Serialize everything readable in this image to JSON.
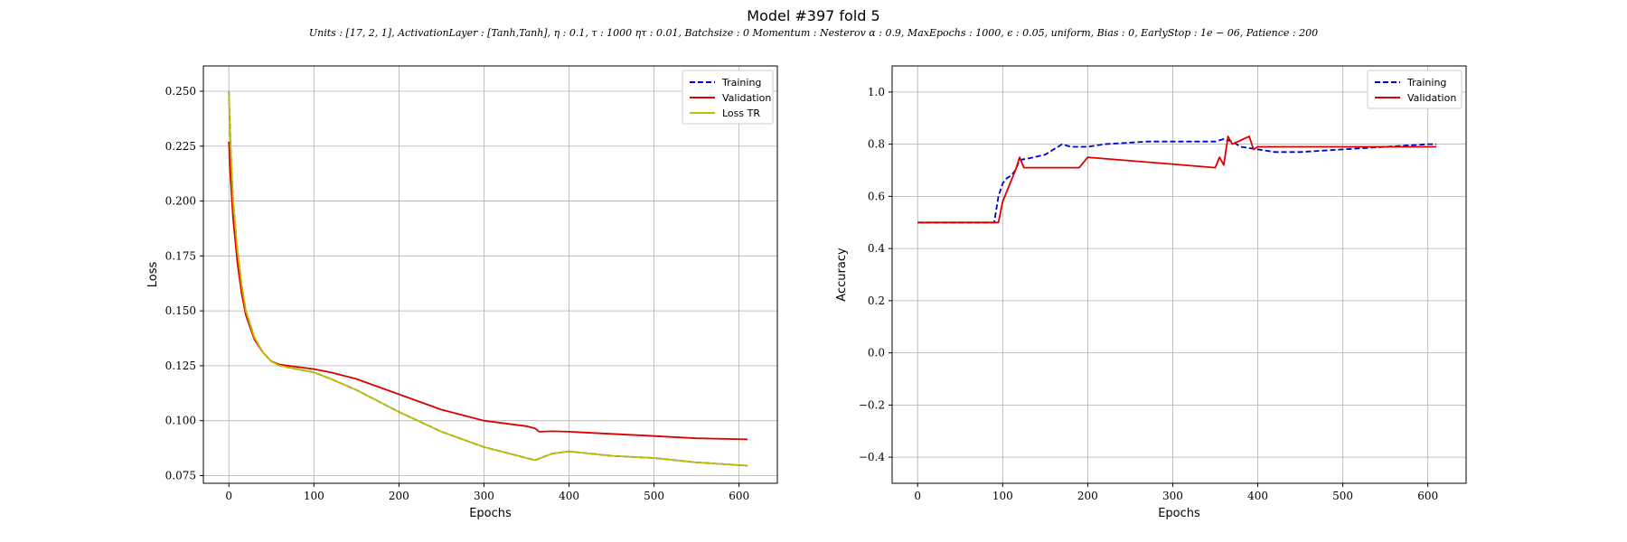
{
  "figure": {
    "title": "Model #397 fold 5",
    "subtitle": "Units : [17, 2, 1], ActivationLayer : [Tanh,Tanh], η : 0.1, τ : 1000 ητ : 0.01, Batchsize : 0 Momentum : Nesterov α : 0.9, MaxEpochs : 1000, ϵ : 0.05, uniform, Bias : 0, EarlyStop : 1e − 06, Patience : 200"
  },
  "chart_data": [
    {
      "type": "line",
      "xlabel": "Epochs",
      "ylabel": "Loss",
      "xlim": [
        -30,
        645
      ],
      "ylim": [
        0.0715,
        0.2615
      ],
      "xticks": [
        0,
        100,
        200,
        300,
        400,
        500,
        600
      ],
      "yticks": [
        0.075,
        0.1,
        0.125,
        0.15,
        0.175,
        0.2,
        0.225,
        0.25
      ],
      "ytick_labels": [
        "0.075",
        "0.100",
        "0.125",
        "0.150",
        "0.175",
        "0.200",
        "0.225",
        "0.250"
      ],
      "grid": true,
      "legend": "top-right",
      "series": [
        {
          "name": "Training",
          "style": "dashed",
          "color": "#0000cc",
          "x": [
            0,
            2,
            5,
            10,
            15,
            20,
            30,
            40,
            50,
            60,
            80,
            100,
            120,
            150,
            200,
            250,
            300,
            350,
            360,
            380,
            400,
            450,
            500,
            550,
            610
          ],
          "y": [
            0.25,
            0.225,
            0.2,
            0.178,
            0.162,
            0.15,
            0.138,
            0.131,
            0.127,
            0.125,
            0.1235,
            0.122,
            0.119,
            0.114,
            0.104,
            0.095,
            0.088,
            0.083,
            0.082,
            0.085,
            0.086,
            0.084,
            0.083,
            0.081,
            0.0795
          ]
        },
        {
          "name": "Validation",
          "style": "solid",
          "color": "#dd0000",
          "x": [
            0,
            2,
            5,
            10,
            15,
            20,
            30,
            40,
            50,
            60,
            80,
            100,
            120,
            150,
            200,
            250,
            300,
            350,
            360,
            365,
            380,
            400,
            450,
            500,
            550,
            610
          ],
          "y": [
            0.227,
            0.21,
            0.192,
            0.172,
            0.158,
            0.148,
            0.137,
            0.131,
            0.127,
            0.1255,
            0.1245,
            0.1235,
            0.122,
            0.119,
            0.112,
            0.105,
            0.1,
            0.0975,
            0.0965,
            0.095,
            0.0952,
            0.095,
            0.094,
            0.093,
            0.092,
            0.0915
          ]
        },
        {
          "name": "Loss TR",
          "style": "solid",
          "color": "#bfbf00",
          "x": [
            0,
            2,
            5,
            10,
            15,
            20,
            30,
            40,
            50,
            60,
            80,
            100,
            120,
            150,
            200,
            250,
            300,
            350,
            360,
            380,
            400,
            450,
            500,
            550,
            610
          ],
          "y": [
            0.25,
            0.225,
            0.2,
            0.178,
            0.162,
            0.15,
            0.138,
            0.131,
            0.127,
            0.125,
            0.1235,
            0.122,
            0.119,
            0.114,
            0.104,
            0.095,
            0.088,
            0.083,
            0.082,
            0.085,
            0.086,
            0.084,
            0.083,
            0.081,
            0.0795
          ]
        }
      ]
    },
    {
      "type": "line",
      "xlabel": "Epochs",
      "ylabel": "Accuracy",
      "xlim": [
        -30,
        645
      ],
      "ylim": [
        -0.5,
        1.1
      ],
      "xticks": [
        0,
        100,
        200,
        300,
        400,
        500,
        600
      ],
      "yticks": [
        -0.4,
        -0.2,
        0.0,
        0.2,
        0.4,
        0.6,
        0.8,
        1.0
      ],
      "ytick_labels": [
        "−0.4",
        "−0.2",
        "0.0",
        "0.2",
        "0.4",
        "0.6",
        "0.8",
        "1.0"
      ],
      "grid": true,
      "legend": "top-right",
      "series": [
        {
          "name": "Training",
          "style": "dashed",
          "color": "#0000cc",
          "x": [
            0,
            90,
            95,
            100,
            105,
            110,
            115,
            120,
            130,
            150,
            170,
            180,
            200,
            220,
            270,
            300,
            350,
            360,
            370,
            380,
            400,
            420,
            450,
            500,
            550,
            600,
            610
          ],
          "y": [
            0.5,
            0.5,
            0.6,
            0.65,
            0.67,
            0.68,
            0.7,
            0.74,
            0.745,
            0.76,
            0.8,
            0.79,
            0.79,
            0.8,
            0.81,
            0.81,
            0.81,
            0.82,
            0.81,
            0.79,
            0.78,
            0.77,
            0.77,
            0.78,
            0.79,
            0.8,
            0.8
          ]
        },
        {
          "name": "Validation",
          "style": "solid",
          "color": "#dd0000",
          "x": [
            0,
            95,
            100,
            110,
            115,
            120,
            125,
            190,
            200,
            350,
            355,
            360,
            365,
            370,
            390,
            395,
            400,
            450,
            500,
            550,
            610
          ],
          "y": [
            0.5,
            0.5,
            0.58,
            0.66,
            0.7,
            0.75,
            0.71,
            0.71,
            0.75,
            0.71,
            0.75,
            0.72,
            0.83,
            0.8,
            0.83,
            0.78,
            0.79,
            0.79,
            0.79,
            0.79,
            0.79
          ]
        }
      ]
    }
  ]
}
